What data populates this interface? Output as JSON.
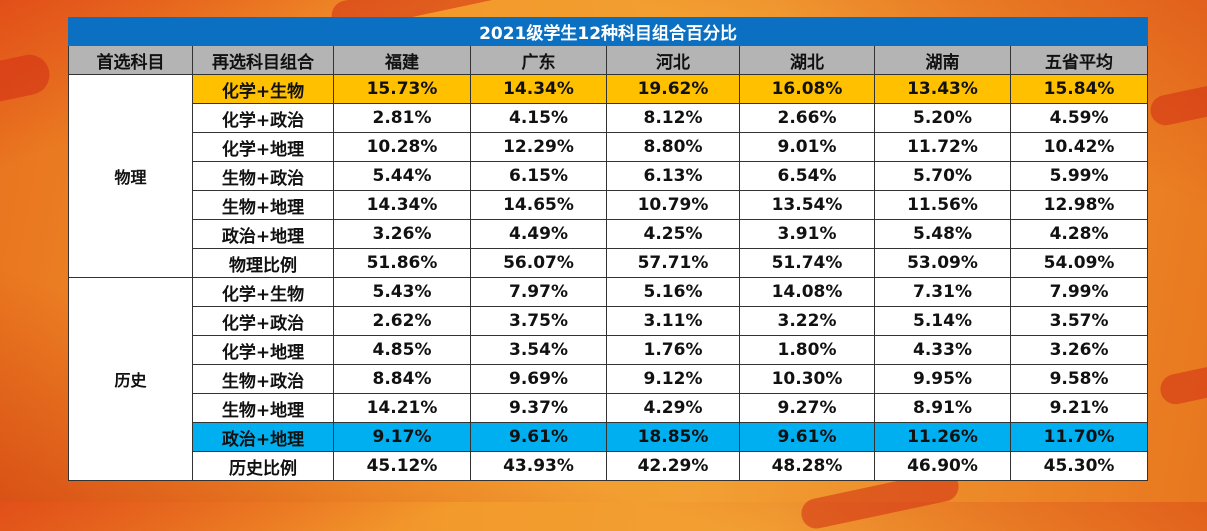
{
  "title": "2021级学生12种科目组合百分比",
  "headers": [
    "首选科目",
    "再选科目组合",
    "福建",
    "广东",
    "河北",
    "湖北",
    "湖南",
    "五省平均"
  ],
  "highlight_colors": {
    "yellow": "#ffc000",
    "blue": "#00aff0",
    "title_bg": "#0b6fc2",
    "header_bg": "#b4b4b4"
  },
  "groups": [
    {
      "first": "物理",
      "rows": [
        {
          "combo": "化学+生物",
          "values": [
            "15.73%",
            "14.34%",
            "19.62%",
            "16.08%",
            "13.43%",
            "15.84%"
          ],
          "highlight": "yellow"
        },
        {
          "combo": "化学+政治",
          "values": [
            "2.81%",
            "4.15%",
            "8.12%",
            "2.66%",
            "5.20%",
            "4.59%"
          ]
        },
        {
          "combo": "化学+地理",
          "values": [
            "10.28%",
            "12.29%",
            "8.80%",
            "9.01%",
            "11.72%",
            "10.42%"
          ]
        },
        {
          "combo": "生物+政治",
          "values": [
            "5.44%",
            "6.15%",
            "6.13%",
            "6.54%",
            "5.70%",
            "5.99%"
          ]
        },
        {
          "combo": "生物+地理",
          "values": [
            "14.34%",
            "14.65%",
            "10.79%",
            "13.54%",
            "11.56%",
            "12.98%"
          ]
        },
        {
          "combo": "政治+地理",
          "values": [
            "3.26%",
            "4.49%",
            "4.25%",
            "3.91%",
            "5.48%",
            "4.28%"
          ]
        },
        {
          "combo": "物理比例",
          "values": [
            "51.86%",
            "56.07%",
            "57.71%",
            "51.74%",
            "53.09%",
            "54.09%"
          ]
        }
      ]
    },
    {
      "first": "历史",
      "rows": [
        {
          "combo": "化学+生物",
          "values": [
            "5.43%",
            "7.97%",
            "5.16%",
            "14.08%",
            "7.31%",
            "7.99%"
          ]
        },
        {
          "combo": "化学+政治",
          "values": [
            "2.62%",
            "3.75%",
            "3.11%",
            "3.22%",
            "5.14%",
            "3.57%"
          ]
        },
        {
          "combo": "化学+地理",
          "values": [
            "4.85%",
            "3.54%",
            "1.76%",
            "1.80%",
            "4.33%",
            "3.26%"
          ]
        },
        {
          "combo": "生物+政治",
          "values": [
            "8.84%",
            "9.69%",
            "9.12%",
            "10.30%",
            "9.95%",
            "9.58%"
          ]
        },
        {
          "combo": "生物+地理",
          "values": [
            "14.21%",
            "9.37%",
            "4.29%",
            "9.27%",
            "8.91%",
            "9.21%"
          ]
        },
        {
          "combo": "政治+地理",
          "values": [
            "9.17%",
            "9.61%",
            "18.85%",
            "9.61%",
            "11.26%",
            "11.70%"
          ],
          "highlight": "blue"
        },
        {
          "combo": "历史比例",
          "values": [
            "45.12%",
            "43.93%",
            "42.29%",
            "48.28%",
            "46.90%",
            "45.30%"
          ]
        }
      ]
    }
  ]
}
